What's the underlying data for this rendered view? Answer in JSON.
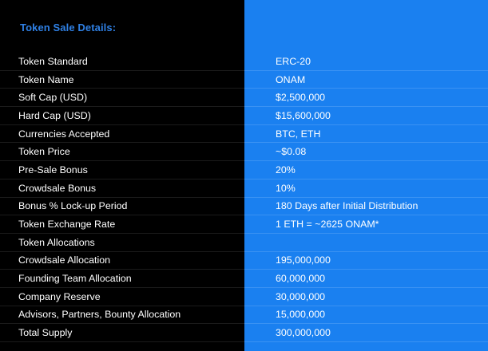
{
  "heading": "Token Sale Details:",
  "colors": {
    "left_bg": "#000000",
    "right_bg": "#1a80f0",
    "heading": "#2f80e4",
    "text": "#ffffff"
  },
  "rows": [
    {
      "label": "Token Standard",
      "value": "ERC-20"
    },
    {
      "label": "Token Name",
      "value": "ONAM"
    },
    {
      "label": "Soft Cap (USD)",
      "value": "$2,500,000"
    },
    {
      "label": "Hard Cap (USD)",
      "value": "$15,600,000"
    },
    {
      "label": "Currencies Accepted",
      "value": "BTC, ETH"
    },
    {
      "label": "Token Price",
      "value": "~$0.08"
    },
    {
      "label": "Pre-Sale Bonus",
      "value": "20%"
    },
    {
      "label": "Crowdsale Bonus",
      "value": "10%"
    },
    {
      "label": "Bonus % Lock-up Period",
      "value": "180 Days after Initial Distribution"
    },
    {
      "label": "Token Exchange Rate",
      "value": "1 ETH = ~2625 ONAM*"
    },
    {
      "label": "Token Allocations",
      "value": ""
    },
    {
      "label": "Crowdsale Allocation",
      "value": "195,000,000"
    },
    {
      "label": "Founding Team Allocation",
      "value": "60,000,000"
    },
    {
      "label": "Company Reserve",
      "value": "30,000,000"
    },
    {
      "label": "Advisors, Partners, Bounty Allocation",
      "value": "15,000,000"
    },
    {
      "label": "Total Supply",
      "value": "300,000,000"
    }
  ]
}
